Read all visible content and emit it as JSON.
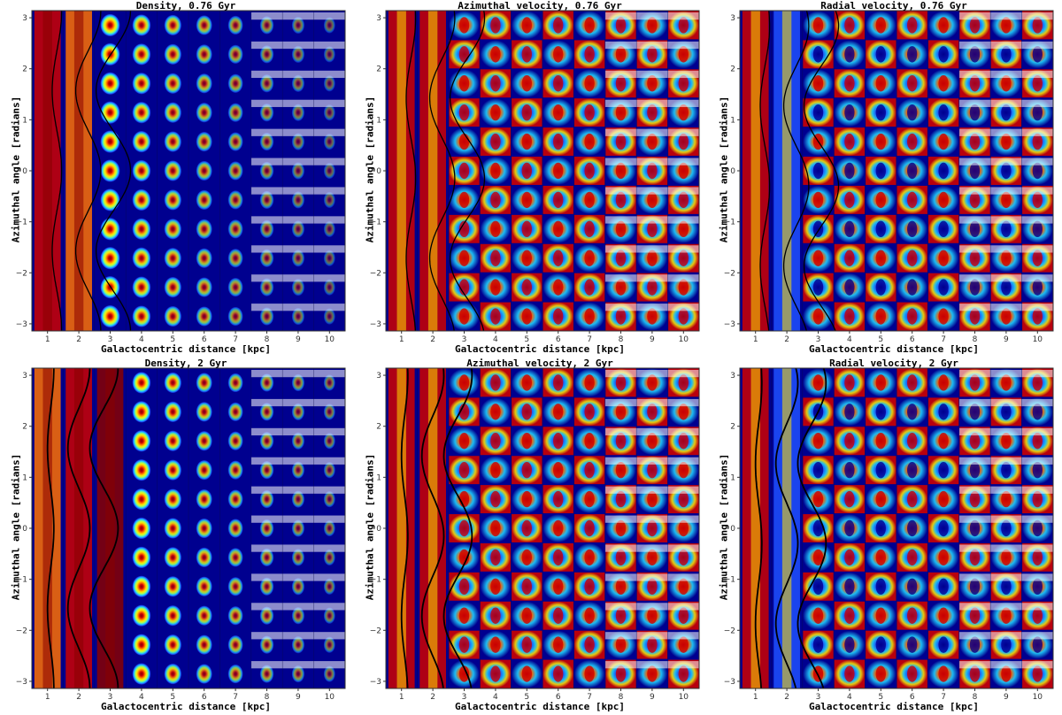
{
  "panels": [
    {
      "title": "Density, 0.76 Gyr",
      "quantity": "density",
      "time_gyr": 0.76
    },
    {
      "title": "Azimuthal velocity, 0.76 Gyr",
      "quantity": "azimuthal_velocity",
      "time_gyr": 0.76
    },
    {
      "title": "Radial velocity, 0.76 Gyr",
      "quantity": "radial_velocity",
      "time_gyr": 0.76
    },
    {
      "title": "Density, 2 Gyr",
      "quantity": "density",
      "time_gyr": 2
    },
    {
      "title": "Azimuthal velocity, 2 Gyr",
      "quantity": "azimuthal_velocity",
      "time_gyr": 2
    },
    {
      "title": "Radial velocity, 2 Gyr",
      "quantity": "radial_velocity",
      "time_gyr": 2
    }
  ],
  "axes": {
    "xlabel": "Galactocentric distance [kpc]",
    "ylabel": "Azimuthal angle [radians]"
  },
  "colors": {
    "dark_blue": "#00008f",
    "blue": "#1e50ff",
    "cyan": "#20d0ff",
    "green_yellow": "#b0ff50",
    "yellow": "#ffe000",
    "orange": "#ff7000",
    "red": "#cc0000",
    "dark_red": "#880000",
    "curve": "#000000"
  },
  "chart_data": [
    {
      "type": "heatmap",
      "title": "Density, 0.76 Gyr",
      "xlabel": "Galactocentric distance [kpc]",
      "ylabel": "Azimuthal angle [radians]",
      "xlim": [
        0.5,
        10.5
      ],
      "ylim": [
        -3.14,
        3.14
      ],
      "xticks": [
        1,
        2,
        3,
        4,
        5,
        6,
        7,
        8,
        9,
        10
      ],
      "yticks": [
        -3,
        -2,
        -1,
        0,
        1,
        2,
        3
      ],
      "grid": {
        "radial_bins_kpc": [
          1,
          2,
          3,
          4,
          5,
          6,
          7,
          8,
          9,
          10
        ],
        "azimuthal_bins": 11
      },
      "overlay_curves": [
        {
          "base_r_kpc": 1.3,
          "amplitude_kpc": 0.15,
          "azimuthal_mode": 2
        },
        {
          "base_r_kpc": 2.3,
          "amplitude_kpc": 0.4,
          "azimuthal_mode": 2
        },
        {
          "base_r_kpc": 3.1,
          "amplitude_kpc": 0.55,
          "azimuthal_mode": 2
        }
      ]
    },
    {
      "type": "heatmap",
      "title": "Azimuthal velocity, 0.76 Gyr",
      "xlabel": "Galactocentric distance [kpc]",
      "ylabel": "Azimuthal angle [radians]",
      "xlim": [
        0.5,
        10.5
      ],
      "ylim": [
        -3.14,
        3.14
      ],
      "xticks": [
        1,
        2,
        3,
        4,
        5,
        6,
        7,
        8,
        9,
        10
      ],
      "yticks": [
        -3,
        -2,
        -1,
        0,
        1,
        2,
        3
      ],
      "grid": {
        "radial_bins_kpc": [
          1,
          2,
          3,
          4,
          5,
          6,
          7,
          8,
          9,
          10
        ],
        "azimuthal_bins": 11
      },
      "overlay_curves": [
        {
          "base_r_kpc": 1.3,
          "amplitude_kpc": 0.15,
          "azimuthal_mode": 2
        },
        {
          "base_r_kpc": 2.3,
          "amplitude_kpc": 0.4,
          "azimuthal_mode": 2
        },
        {
          "base_r_kpc": 3.1,
          "amplitude_kpc": 0.55,
          "azimuthal_mode": 2
        }
      ]
    },
    {
      "type": "heatmap",
      "title": "Radial velocity, 0.76 Gyr",
      "xlabel": "Galactocentric distance [kpc]",
      "ylabel": "Azimuthal angle [radians]",
      "xlim": [
        0.5,
        10.5
      ],
      "ylim": [
        -3.14,
        3.14
      ],
      "xticks": [
        1,
        2,
        3,
        4,
        5,
        6,
        7,
        8,
        9,
        10
      ],
      "yticks": [
        -3,
        -2,
        -1,
        0,
        1,
        2,
        3
      ],
      "grid": {
        "radial_bins_kpc": [
          1,
          2,
          3,
          4,
          5,
          6,
          7,
          8,
          9,
          10
        ],
        "azimuthal_bins": 11
      },
      "overlay_curves": [
        {
          "base_r_kpc": 1.3,
          "amplitude_kpc": 0.15,
          "azimuthal_mode": 2
        },
        {
          "base_r_kpc": 2.3,
          "amplitude_kpc": 0.4,
          "azimuthal_mode": 2
        },
        {
          "base_r_kpc": 3.1,
          "amplitude_kpc": 0.55,
          "azimuthal_mode": 2
        }
      ]
    },
    {
      "type": "heatmap",
      "title": "Density, 2 Gyr",
      "xlabel": "Galactocentric distance [kpc]",
      "ylabel": "Azimuthal angle [radians]",
      "xlim": [
        0.5,
        10.5
      ],
      "ylim": [
        -3.14,
        3.14
      ],
      "xticks": [
        1,
        2,
        3,
        4,
        5,
        6,
        7,
        8,
        9,
        10
      ],
      "yticks": [
        -3,
        -2,
        -1,
        0,
        1,
        2,
        3
      ],
      "grid": {
        "radial_bins_kpc": [
          1,
          2,
          3,
          4,
          5,
          6,
          7,
          8,
          9,
          10
        ],
        "azimuthal_bins": 11
      },
      "overlay_curves": [
        {
          "base_r_kpc": 1.1,
          "amplitude_kpc": 0.1,
          "azimuthal_mode": 2
        },
        {
          "base_r_kpc": 2.0,
          "amplitude_kpc": 0.35,
          "azimuthal_mode": 2
        },
        {
          "base_r_kpc": 2.8,
          "amplitude_kpc": 0.45,
          "azimuthal_mode": 2
        }
      ]
    },
    {
      "type": "heatmap",
      "title": "Azimuthal velocity, 2 Gyr",
      "xlabel": "Galactocentric distance [kpc]",
      "ylabel": "Azimuthal angle [radians]",
      "xlim": [
        0.5,
        10.5
      ],
      "ylim": [
        -3.14,
        3.14
      ],
      "xticks": [
        1,
        2,
        3,
        4,
        5,
        6,
        7,
        8,
        9,
        10
      ],
      "yticks": [
        -3,
        -2,
        -1,
        0,
        1,
        2,
        3
      ],
      "grid": {
        "radial_bins_kpc": [
          1,
          2,
          3,
          4,
          5,
          6,
          7,
          8,
          9,
          10
        ],
        "azimuthal_bins": 11
      },
      "overlay_curves": [
        {
          "base_r_kpc": 1.1,
          "amplitude_kpc": 0.1,
          "azimuthal_mode": 2
        },
        {
          "base_r_kpc": 2.0,
          "amplitude_kpc": 0.35,
          "azimuthal_mode": 2
        },
        {
          "base_r_kpc": 2.8,
          "amplitude_kpc": 0.45,
          "azimuthal_mode": 2
        }
      ]
    },
    {
      "type": "heatmap",
      "title": "Radial velocity, 2 Gyr",
      "xlabel": "Galactocentric distance [kpc]",
      "ylabel": "Azimuthal angle [radians]",
      "xlim": [
        0.5,
        10.5
      ],
      "ylim": [
        -3.14,
        3.14
      ],
      "xticks": [
        1,
        2,
        3,
        4,
        5,
        6,
        7,
        8,
        9,
        10
      ],
      "yticks": [
        -3,
        -2,
        -1,
        0,
        1,
        2,
        3
      ],
      "grid": {
        "radial_bins_kpc": [
          1,
          2,
          3,
          4,
          5,
          6,
          7,
          8,
          9,
          10
        ],
        "azimuthal_bins": 11
      },
      "overlay_curves": [
        {
          "base_r_kpc": 1.1,
          "amplitude_kpc": 0.1,
          "azimuthal_mode": 2
        },
        {
          "base_r_kpc": 2.0,
          "amplitude_kpc": 0.35,
          "azimuthal_mode": 2
        },
        {
          "base_r_kpc": 2.8,
          "amplitude_kpc": 0.45,
          "azimuthal_mode": 2
        }
      ]
    }
  ]
}
